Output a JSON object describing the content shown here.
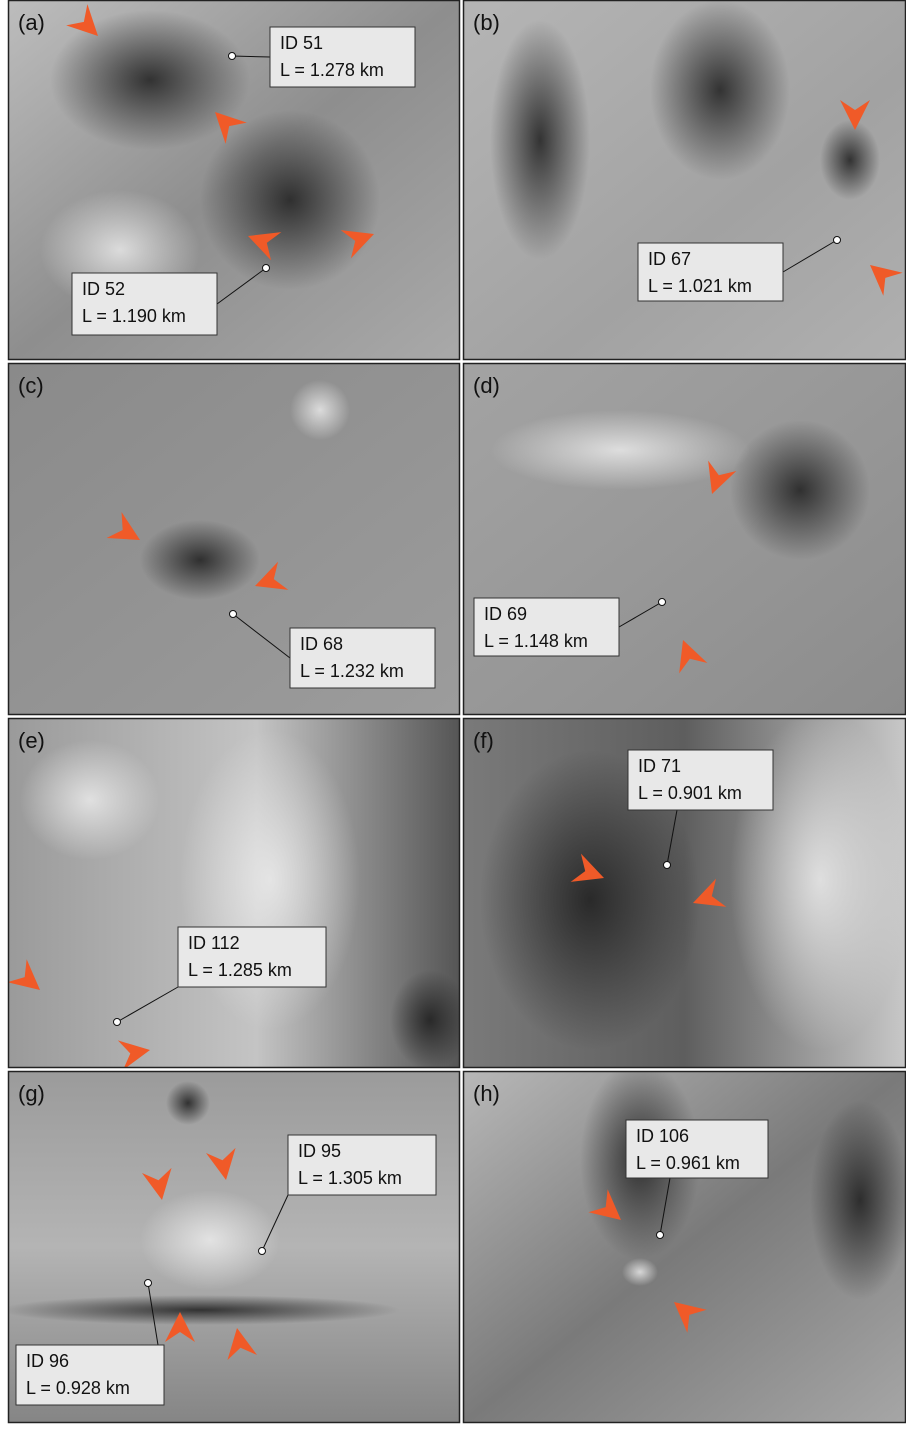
{
  "panels": [
    {
      "letter": "(a)",
      "callouts": [
        {
          "id": "ID 51",
          "length": "L = 1.278 km"
        },
        {
          "id": "ID 52",
          "length": "L = 1.190 km"
        }
      ]
    },
    {
      "letter": "(b)",
      "callouts": [
        {
          "id": "ID 67",
          "length": "L = 1.021 km"
        }
      ]
    },
    {
      "letter": "(c)",
      "callouts": [
        {
          "id": "ID 68",
          "length": "L = 1.232 km"
        }
      ]
    },
    {
      "letter": "(d)",
      "callouts": [
        {
          "id": "ID 69",
          "length": "L = 1.148 km"
        }
      ]
    },
    {
      "letter": "(e)",
      "callouts": [
        {
          "id": "ID 112",
          "length": "L = 1.285 km"
        }
      ]
    },
    {
      "letter": "(f)",
      "callouts": [
        {
          "id": "ID 71",
          "length": "L = 0.901 km"
        }
      ]
    },
    {
      "letter": "(g)",
      "callouts": [
        {
          "id": "ID 95",
          "length": "L = 1.305 km"
        },
        {
          "id": "ID 96",
          "length": "L = 0.928 km"
        }
      ]
    },
    {
      "letter": "(h)",
      "callouts": [
        {
          "id": "ID 106",
          "length": "L = 0.961 km"
        }
      ]
    }
  ]
}
